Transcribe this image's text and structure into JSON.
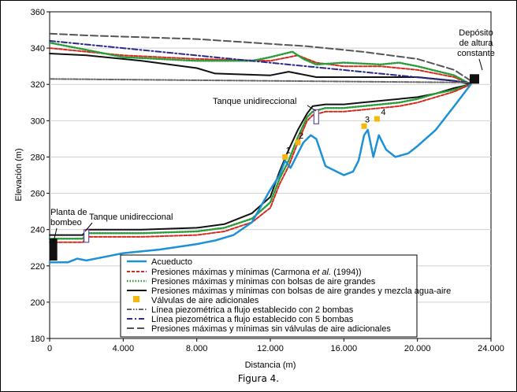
{
  "caption": "Figura 4.",
  "chart_data": {
    "type": "line",
    "xlabel": "Distancia (m)",
    "ylabel": "Elevación (m)",
    "xlim": [
      0,
      24000
    ],
    "ylim": [
      180,
      360
    ],
    "x_ticks": [
      0,
      4000,
      8000,
      12000,
      16000,
      20000,
      24000
    ],
    "x_tick_labels": [
      "0",
      "4.000",
      "8.000",
      "12.000",
      "16.000",
      "20.000",
      "24.000"
    ],
    "y_ticks": [
      180,
      200,
      220,
      240,
      260,
      280,
      300,
      320,
      340,
      360
    ],
    "y_tick_labels": [
      "180",
      "200",
      "220",
      "240",
      "260",
      "280",
      "300",
      "320",
      "340",
      "360"
    ],
    "grid": "horizontal",
    "legend_position": "bottom-right",
    "series": [
      {
        "name": "Acueducto",
        "color": "#1e90d6",
        "style": "solid",
        "x": [
          0,
          1000,
          1500,
          2000,
          3000,
          4000,
          6000,
          8000,
          9000,
          10000,
          11000,
          12000,
          12500,
          12800,
          13100,
          13500,
          13800,
          14200,
          14500,
          15000,
          16000,
          16500,
          16800,
          17100,
          17300,
          17600,
          17900,
          18300,
          18800,
          19500,
          20000,
          21000,
          22000,
          22900
        ],
        "y": [
          222,
          222,
          224,
          223,
          225,
          227,
          229,
          232,
          234,
          237,
          244,
          262,
          270,
          278,
          274,
          282,
          288,
          292,
          290,
          275,
          270,
          272,
          278,
          292,
          295,
          280,
          292,
          284,
          280,
          282,
          286,
          295,
          308,
          320
        ]
      },
      {
        "name": "Presiones máximas y mínimas (Carmona et al. (1994))",
        "color": "#d42a1f",
        "style": "dashed",
        "x": [
          0,
          1800,
          2000,
          3000,
          5000,
          8000,
          9500,
          11000,
          12000,
          12500,
          13000,
          13500,
          14000,
          14300,
          15000,
          16000,
          17000,
          18000,
          19000,
          20000,
          21000,
          22000,
          22900
        ],
        "y": [
          233,
          233,
          236,
          236,
          236,
          237,
          239,
          244,
          252,
          265,
          275,
          288,
          300,
          303,
          305,
          305,
          306,
          307,
          308,
          310,
          313,
          316,
          320
        ]
      },
      {
        "name": "Presiones máximas y mínimas con bolsas de aire grandes",
        "color": "#2a9d3a",
        "style": "dotted",
        "x": [
          0,
          1800,
          2000,
          3000,
          5000,
          8000,
          9500,
          11000,
          12000,
          12500,
          13000,
          13500,
          14000,
          14300,
          15000,
          16000,
          17000,
          18000,
          19000,
          20000,
          21000,
          22000,
          22900
        ],
        "y": [
          235,
          235,
          238,
          238,
          238,
          239,
          241,
          246,
          255,
          268,
          278,
          291,
          302,
          305,
          307,
          307,
          308,
          309,
          310,
          312,
          315,
          317,
          320
        ]
      },
      {
        "name": "Presiones máximas y mínimas con bolsas de aire grandes y mezcla agua-aire",
        "color": "#111111",
        "style": "solid",
        "x": [
          0,
          1800,
          2000,
          3000,
          5000,
          8000,
          9500,
          11000,
          12000,
          12500,
          13000,
          13500,
          14000,
          14300,
          15000,
          16000,
          17000,
          18000,
          19000,
          20000,
          21000,
          22000,
          22900
        ],
        "y": [
          237,
          237,
          240,
          240,
          240,
          241,
          243,
          249,
          258,
          272,
          284,
          295,
          304,
          308,
          309,
          309,
          310,
          311,
          312,
          313,
          315,
          318,
          320
        ]
      },
      {
        "name": "Línea piezométrica a flujo establecido con 2 bombas",
        "color": "#666666",
        "style": "dashdotdot",
        "x": [
          0,
          22900
        ],
        "y": [
          323,
          321
        ]
      },
      {
        "name": "Línea piezométrica a flujo establecido con 5 bombas",
        "color": "#2a2a8a",
        "style": "dashdot",
        "x": [
          0,
          22900
        ],
        "y": [
          344,
          321
        ]
      },
      {
        "name": "Presiones máximas y mínimas sin válvulas de aire adicionales",
        "color": "#555555",
        "style": "longdash",
        "x": [
          0,
          2000,
          5000,
          8000,
          11000,
          14000,
          17000,
          20000,
          22000,
          22900
        ],
        "y": [
          348,
          347,
          346,
          345,
          343,
          341,
          338,
          334,
          328,
          322
        ]
      }
    ],
    "upper_envelopes": [
      {
        "series": "Presiones máximas y mínimas (Carmona et al. (1994))",
        "color": "#d42a1f",
        "style": "dashed",
        "x": [
          0,
          4000,
          8000,
          12000,
          13500,
          14500,
          16000,
          18000,
          20000,
          22000,
          22900
        ],
        "y": [
          340,
          336,
          334,
          333,
          336,
          332,
          330,
          330,
          328,
          324,
          320
        ]
      },
      {
        "series": "Presiones máximas y mínimas con bolsas de aire grandes",
        "color": "#2a9d3a",
        "style": "dotted",
        "x": [
          0,
          2000,
          4000,
          8000,
          11000,
          12000,
          13200,
          13800,
          14500,
          16000,
          18000,
          19000,
          20000,
          22000,
          22900
        ],
        "y": [
          343,
          339,
          335,
          333,
          333,
          335,
          338,
          334,
          331,
          332,
          331,
          332,
          330,
          325,
          320
        ]
      },
      {
        "series": "Presiones máximas y mínimas con bolsas de aire grandes y mezcla agua-aire",
        "color": "#111111",
        "style": "solid",
        "x": [
          0,
          2000,
          5000,
          8000,
          9000,
          12000,
          13000,
          14500,
          16000,
          18000,
          20000,
          22000,
          22900
        ],
        "y": [
          337,
          336,
          333,
          329,
          326,
          325,
          327,
          324,
          324,
          324,
          324,
          322,
          320
        ]
      }
    ],
    "air_valves": {
      "label": "Válvulas de aire adicionales",
      "color": "#f5b60e",
      "points": [
        {
          "id": "1",
          "x": 12800,
          "y": 280
        },
        {
          "id": "2",
          "x": 13500,
          "y": 288
        },
        {
          "id": "3",
          "x": 17100,
          "y": 297
        },
        {
          "id": "4",
          "x": 17800,
          "y": 301
        }
      ]
    },
    "structures": [
      {
        "label": "Planta de bombeo",
        "x": 200,
        "y": 229
      },
      {
        "label": "Tanque unidireccional",
        "x": 2000,
        "y": 233
      },
      {
        "label": "Tanque unidireccional",
        "x": 14500,
        "y": 300
      },
      {
        "label": "Depósito de altura constante",
        "x": 23100,
        "y": 323
      }
    ],
    "annotations": {
      "plant_line1": "Planta de",
      "plant_line2": "bombeo",
      "tank1": "Tanque unidireccional",
      "tank2": "Tanque unidireccional",
      "deposit_line1": "Depósito",
      "deposit_line2": "de altura",
      "deposit_line3": "constante"
    },
    "legend": [
      {
        "label": "Acueducto",
        "key": "solid-blue"
      },
      {
        "label_parts": [
          "Presiones máximas y mínimas (Carmona ",
          "et al.",
          " (1994))"
        ],
        "key": "dashed-red"
      },
      {
        "label": "Presiones máximas y mínimas con bolsas de aire grandes",
        "key": "dotted-green"
      },
      {
        "label": "Presiones máximas y mínimas con bolsas de aire grandes y mezcla agua-aire",
        "key": "solid-black"
      },
      {
        "label": "Válvulas de aire adicionales",
        "key": "square-yellow"
      },
      {
        "label": "Línea piezométrica a flujo establecido con 2 bombas",
        "key": "dashdotdot-gray"
      },
      {
        "label": "Línea piezométrica a flujo establecido con 5 bombas",
        "key": "dashdot-navy"
      },
      {
        "label": "Presiones máximas y mínimas sin válvulas de aire adicionales",
        "key": "longdash-gray"
      }
    ]
  }
}
